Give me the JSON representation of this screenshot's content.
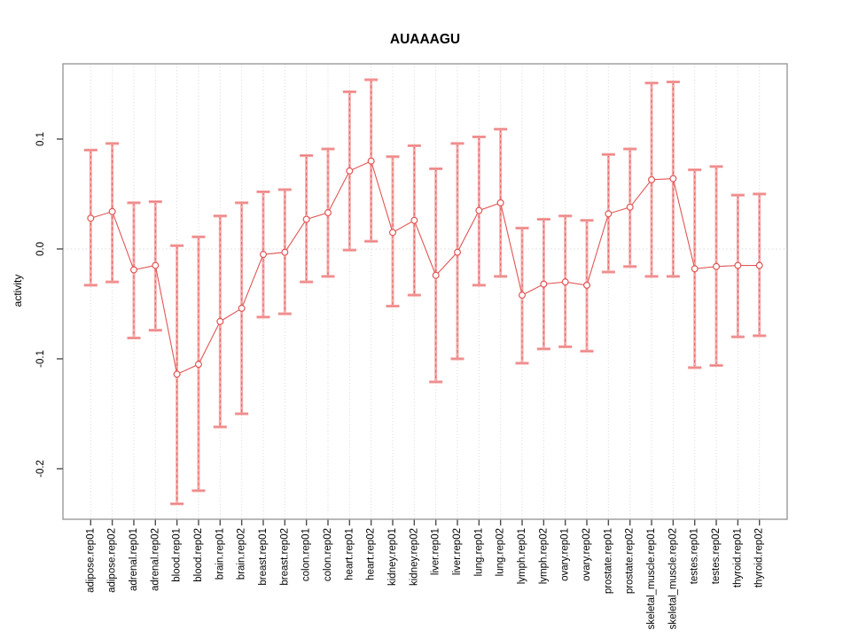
{
  "chart_data": {
    "type": "scatter",
    "title": "AUAAAGU",
    "xlabel": "",
    "ylabel": "activity",
    "legend_position": "none",
    "grid": "dotted vertical line at every category and dotted horizontal line at y=0",
    "marker": "open-circle",
    "line_between_points": true,
    "error_bars": true,
    "ylim": [
      -0.246,
      0.1685
    ],
    "y_ticks": [
      {
        "value": 0.1,
        "label": "0.1"
      },
      {
        "value": 0.0,
        "label": "0.0"
      },
      {
        "value": -0.1,
        "label": "-0.1"
      },
      {
        "value": -0.2,
        "label": "-0.2"
      }
    ],
    "categories": [
      "adipose.rep01",
      "adipose.rep02",
      "adrenal.rep01",
      "adrenal.rep02",
      "blood.rep01",
      "blood.rep02",
      "brain.rep01",
      "brain.rep02",
      "breast.rep01",
      "breast.rep02",
      "colon.rep01",
      "colon.rep02",
      "heart.rep01",
      "heart.rep02",
      "kidney.rep01",
      "kidney.rep02",
      "liver.rep01",
      "liver.rep02",
      "lung.rep01",
      "lung.rep02",
      "lymph.rep01",
      "lymph.rep02",
      "ovary.rep01",
      "ovary.rep02",
      "prostate.rep01",
      "prostate.rep02",
      "skeletal_muscle.rep01",
      "skeletal_muscle.rep02",
      "testes.rep01",
      "testes.rep02",
      "thyroid.rep01",
      "thyroid.rep02"
    ],
    "series": [
      {
        "name": "activity",
        "values": [
          0.028,
          0.034,
          -0.019,
          -0.015,
          -0.114,
          -0.105,
          -0.066,
          -0.054,
          -0.005,
          -0.003,
          0.027,
          0.033,
          0.071,
          0.08,
          0.015,
          0.026,
          -0.024,
          -0.003,
          0.035,
          0.042,
          -0.042,
          -0.032,
          -0.03,
          -0.033,
          0.032,
          0.038,
          0.063,
          0.064,
          -0.018,
          -0.016,
          -0.015,
          -0.015
        ],
        "ci_low": [
          -0.033,
          -0.03,
          -0.081,
          -0.074,
          -0.232,
          -0.22,
          -0.162,
          -0.15,
          -0.062,
          -0.059,
          -0.03,
          -0.025,
          -0.001,
          0.007,
          -0.052,
          -0.042,
          -0.121,
          -0.1,
          -0.033,
          -0.025,
          -0.104,
          -0.091,
          -0.089,
          -0.093,
          -0.021,
          -0.016,
          -0.025,
          -0.025,
          -0.108,
          -0.106,
          -0.08,
          -0.079
        ],
        "ci_high": [
          0.09,
          0.096,
          0.042,
          0.043,
          0.003,
          0.011,
          0.03,
          0.042,
          0.052,
          0.054,
          0.085,
          0.091,
          0.143,
          0.154,
          0.084,
          0.094,
          0.073,
          0.096,
          0.102,
          0.109,
          0.019,
          0.027,
          0.03,
          0.026,
          0.086,
          0.091,
          0.151,
          0.152,
          0.072,
          0.075,
          0.049,
          0.05
        ]
      }
    ],
    "colors": {
      "point_and_line": "#e25555",
      "error_bar_fill": "#f5a5a5",
      "error_bar_dash": "#e25555",
      "grid": "#d6d6d6",
      "zero_line": "#dcdcdc",
      "frame": "#9a9a9a",
      "tick": "#4d4d4d",
      "text": "#000000",
      "background": "#ffffff"
    }
  }
}
